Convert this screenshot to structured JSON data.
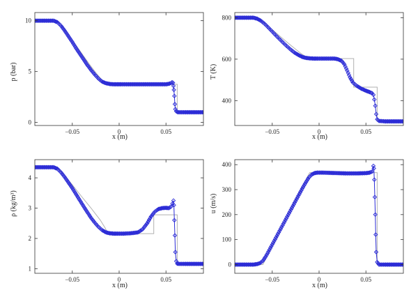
{
  "colors": {
    "simulation": "#2b2bd6",
    "reference": "#b0b0b0",
    "axes": "#333333"
  },
  "chart_data": [
    {
      "type": "line",
      "title": "",
      "xlabel": "x (m)",
      "ylabel": "p (bar)",
      "xlim": [
        -0.09,
        0.09
      ],
      "ylim": [
        -0.3,
        10.8
      ],
      "xticks": [
        -0.05,
        0,
        0.05
      ],
      "xtick_labels": [
        "−0.05",
        "0",
        "0.05"
      ],
      "yticks": [
        0,
        5,
        10
      ],
      "ytick_labels": [
        "0",
        "5",
        "10"
      ],
      "grid": false,
      "series": [
        {
          "marker": "diamond",
          "x": [
            -0.09,
            -0.07,
            -0.066,
            -0.062,
            -0.058,
            -0.054,
            -0.05,
            -0.046,
            -0.042,
            -0.038,
            -0.034,
            -0.03,
            -0.026,
            -0.022,
            -0.018,
            -0.014,
            -0.01,
            -0.006,
            -0.002,
            0.002,
            0.01,
            0.02,
            0.03,
            0.04,
            0.05,
            0.052,
            0.054,
            0.0555,
            0.0565,
            0.0575,
            0.058,
            0.0585,
            0.059,
            0.0595,
            0.06,
            0.061,
            0.062,
            0.064,
            0.07,
            0.08,
            0.09
          ],
          "y": [
            10.0,
            10.0,
            9.85,
            9.5,
            9.0,
            8.45,
            7.9,
            7.3,
            6.75,
            6.2,
            5.65,
            5.15,
            4.7,
            4.3,
            4.0,
            3.85,
            3.78,
            3.75,
            3.75,
            3.75,
            3.75,
            3.75,
            3.75,
            3.75,
            3.75,
            3.78,
            3.82,
            3.88,
            3.95,
            3.9,
            3.6,
            3.2,
            2.6,
            1.8,
            1.3,
            1.1,
            1.02,
            1.0,
            1.0,
            1.0,
            1.0
          ]
        },
        {
          "x": [
            -0.09,
            -0.07,
            -0.065,
            -0.06,
            -0.055,
            -0.05,
            -0.045,
            -0.04,
            -0.035,
            -0.03,
            -0.025,
            -0.02,
            -0.015,
            -0.012,
            -0.01,
            0.062,
            0.062,
            0.09
          ],
          "y": [
            10.0,
            10.0,
            9.85,
            9.35,
            8.75,
            8.1,
            7.45,
            6.8,
            6.15,
            5.5,
            4.9,
            4.35,
            3.9,
            3.76,
            3.75,
            3.75,
            1.0,
            1.0
          ]
        }
      ]
    },
    {
      "type": "line",
      "title": "",
      "xlabel": "x (m)",
      "ylabel": "T (K)",
      "xlim": [
        -0.09,
        0.09
      ],
      "ylim": [
        280,
        825
      ],
      "xticks": [
        -0.05,
        0,
        0.05
      ],
      "xtick_labels": [
        "−0.05",
        "0",
        "0.05"
      ],
      "yticks": [
        400,
        600,
        800
      ],
      "ytick_labels": [
        "400",
        "600",
        "800"
      ],
      "grid": false,
      "series": [
        {
          "marker": "diamond",
          "x": [
            -0.09,
            -0.07,
            -0.066,
            -0.062,
            -0.058,
            -0.054,
            -0.05,
            -0.046,
            -0.042,
            -0.038,
            -0.034,
            -0.03,
            -0.026,
            -0.022,
            -0.018,
            -0.014,
            -0.01,
            -0.006,
            -0.002,
            0.004,
            0.01,
            0.016,
            0.02,
            0.024,
            0.027,
            0.03,
            0.033,
            0.036,
            0.04,
            0.045,
            0.05,
            0.054,
            0.0565,
            0.058,
            0.059,
            0.06,
            0.061,
            0.062,
            0.064,
            0.07,
            0.08,
            0.09
          ],
          "y": [
            800,
            800,
            795,
            785,
            770,
            752,
            733,
            714,
            696,
            678,
            661,
            645,
            631,
            620,
            611,
            606,
            604,
            603,
            603,
            603,
            603,
            603,
            600,
            592,
            575,
            545,
            512,
            488,
            472,
            458,
            448,
            441,
            436,
            428,
            405,
            375,
            335,
            310,
            302,
            300,
            300,
            300
          ]
        },
        {
          "x": [
            -0.09,
            -0.07,
            -0.065,
            -0.06,
            -0.055,
            -0.05,
            -0.04,
            -0.03,
            -0.02,
            -0.015,
            -0.012,
            0.037,
            0.037,
            0.062,
            0.062,
            0.09
          ],
          "y": [
            800,
            800,
            794,
            780,
            762,
            743,
            704,
            666,
            630,
            614,
            603,
            603,
            465,
            465,
            300,
            300
          ]
        }
      ]
    },
    {
      "type": "line",
      "title": "",
      "xlabel": "x (m)",
      "ylabel": "ρ (kg/m³)",
      "xlim": [
        -0.09,
        0.09
      ],
      "ylim": [
        0.85,
        4.6
      ],
      "xticks": [
        -0.05,
        0,
        0.05
      ],
      "xtick_labels": [
        "−0.05",
        "0",
        "0.05"
      ],
      "yticks": [
        1,
        2,
        3,
        4
      ],
      "ytick_labels": [
        "1",
        "2",
        "3",
        "4"
      ],
      "grid": false,
      "series": [
        {
          "marker": "diamond",
          "x": [
            -0.09,
            -0.07,
            -0.066,
            -0.062,
            -0.058,
            -0.054,
            -0.05,
            -0.046,
            -0.042,
            -0.038,
            -0.034,
            -0.03,
            -0.026,
            -0.022,
            -0.018,
            -0.014,
            -0.01,
            -0.006,
            -0.002,
            0.005,
            0.012,
            0.02,
            0.025,
            0.03,
            0.034,
            0.038,
            0.042,
            0.046,
            0.05,
            0.053,
            0.0555,
            0.057,
            0.058,
            0.0585,
            0.059,
            0.0595,
            0.06,
            0.061,
            0.062,
            0.064,
            0.07,
            0.08,
            0.09
          ],
          "y": [
            4.35,
            4.35,
            4.3,
            4.18,
            4.02,
            3.84,
            3.66,
            3.46,
            3.26,
            3.06,
            2.87,
            2.68,
            2.52,
            2.38,
            2.27,
            2.2,
            2.17,
            2.16,
            2.16,
            2.16,
            2.17,
            2.2,
            2.3,
            2.5,
            2.72,
            2.88,
            2.97,
            3.0,
            3.01,
            3.0,
            3.05,
            3.15,
            3.25,
            3.1,
            2.6,
            2.1,
            1.55,
            1.25,
            1.17,
            1.16,
            1.16,
            1.16,
            1.16
          ]
        },
        {
          "x": [
            -0.09,
            -0.07,
            -0.065,
            -0.06,
            -0.055,
            -0.05,
            -0.04,
            -0.03,
            -0.02,
            -0.015,
            -0.012,
            0.037,
            0.037,
            0.062,
            0.062,
            0.09
          ],
          "y": [
            4.35,
            4.35,
            4.3,
            4.15,
            3.96,
            3.77,
            3.38,
            3.0,
            2.6,
            2.35,
            2.16,
            2.16,
            2.78,
            2.78,
            1.16,
            1.16
          ]
        }
      ]
    },
    {
      "type": "line",
      "title": "",
      "xlabel": "x (m)",
      "ylabel": "u (m/s)",
      "xlim": [
        -0.09,
        0.09
      ],
      "ylim": [
        -35,
        420
      ],
      "xticks": [
        -0.05,
        0,
        0.05
      ],
      "xtick_labels": [
        "−0.05",
        "0",
        "0.05"
      ],
      "yticks": [
        0,
        100,
        200,
        300,
        400
      ],
      "ytick_labels": [
        "0",
        "100",
        "200",
        "300",
        "400"
      ],
      "grid": false,
      "series": [
        {
          "marker": "diamond",
          "x": [
            -0.09,
            -0.07,
            -0.066,
            -0.063,
            -0.06,
            -0.057,
            -0.054,
            -0.05,
            -0.046,
            -0.042,
            -0.038,
            -0.034,
            -0.03,
            -0.026,
            -0.022,
            -0.018,
            -0.014,
            -0.011,
            -0.008,
            -0.005,
            -0.002,
            0.004,
            0.012,
            0.02,
            0.03,
            0.04,
            0.05,
            0.054,
            0.0565,
            0.058,
            0.0585,
            0.059,
            0.0595,
            0.06,
            0.0605,
            0.061,
            0.062,
            0.064,
            0.07,
            0.08,
            0.09
          ],
          "y": [
            0,
            0,
            2,
            6,
            15,
            32,
            52,
            80,
            108,
            136,
            164,
            192,
            220,
            248,
            276,
            304,
            330,
            348,
            360,
            366,
            368,
            368,
            367,
            366,
            365,
            365,
            366,
            368,
            372,
            395,
            385,
            340,
            270,
            200,
            120,
            50,
            10,
            0,
            0,
            0,
            0
          ]
        },
        {
          "x": [
            -0.09,
            -0.06,
            -0.055,
            -0.05,
            -0.04,
            -0.03,
            -0.02,
            -0.012,
            -0.01,
            0.062,
            0.062,
            0.09
          ],
          "y": [
            0,
            0,
            37,
            74,
            148,
            222,
            296,
            355,
            368,
            368,
            0,
            0
          ]
        }
      ]
    }
  ]
}
